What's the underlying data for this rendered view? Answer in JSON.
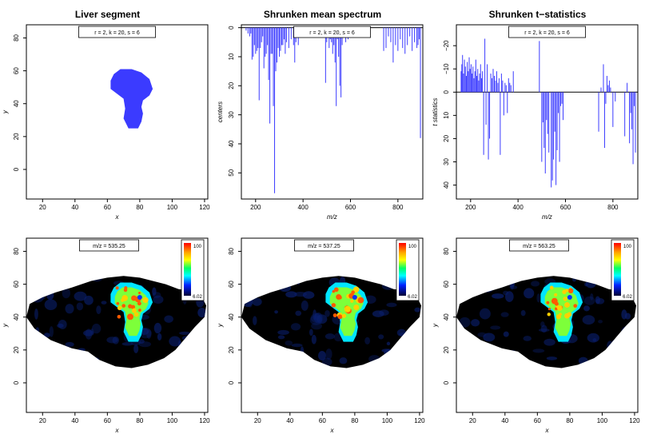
{
  "chart_data": [
    {
      "type": "heatmap",
      "title": "Liver segment",
      "xlabel": "x",
      "ylabel": "y",
      "legend_text": "r = 2, k = 20, s = 6",
      "xticks": [
        20,
        40,
        60,
        80,
        100,
        120
      ],
      "yticks": [
        0,
        20,
        40,
        60,
        80
      ],
      "xlim": [
        10,
        122
      ],
      "ylim": [
        88,
        -18
      ],
      "segment_color": "#3b3bff",
      "segment_outline": [
        [
          73,
          25
        ],
        [
          79,
          25
        ],
        [
          81,
          29
        ],
        [
          82,
          34
        ],
        [
          81,
          38
        ],
        [
          82,
          42
        ],
        [
          86,
          45
        ],
        [
          88,
          49
        ],
        [
          86,
          55
        ],
        [
          81,
          59
        ],
        [
          75,
          61
        ],
        [
          68,
          61
        ],
        [
          64,
          58
        ],
        [
          62,
          54
        ],
        [
          62,
          49
        ],
        [
          66,
          46
        ],
        [
          70,
          43
        ],
        [
          71,
          37
        ],
        [
          70,
          31
        ],
        [
          72,
          27
        ]
      ]
    },
    {
      "type": "bar",
      "title": "Shrunken mean spectrum",
      "xlabel": "m/z",
      "ylabel": "centers",
      "legend_text": "r = 2, k = 20, s = 6",
      "xticks": [
        200,
        400,
        600,
        800
      ],
      "yticks": [
        0,
        10,
        20,
        30,
        40,
        50
      ],
      "xlim": [
        140,
        905
      ],
      "ylim": [
        -1,
        59
      ],
      "bar_color": "#3b3bff",
      "x": [
        160,
        168,
        175,
        180,
        185,
        190,
        195,
        200,
        205,
        210,
        215,
        220,
        225,
        230,
        235,
        240,
        245,
        250,
        255,
        260,
        265,
        270,
        275,
        280,
        285,
        290,
        295,
        300,
        305,
        310,
        315,
        320,
        325,
        330,
        340,
        350,
        360,
        365,
        370,
        380,
        490,
        495,
        500,
        505,
        510,
        515,
        520,
        525,
        530,
        535,
        540,
        545,
        550,
        555,
        560,
        565,
        570,
        580,
        590,
        740,
        750,
        760,
        770,
        780,
        790,
        800,
        810,
        820,
        830,
        840,
        850,
        860,
        870,
        880,
        885,
        890,
        895
      ],
      "values": [
        1,
        2,
        3,
        2,
        11,
        10,
        6,
        9,
        8,
        7,
        25,
        7,
        5,
        3,
        14,
        10,
        9,
        6,
        18,
        33,
        9,
        9,
        27,
        57,
        15,
        12,
        7,
        10,
        8,
        6,
        6,
        4,
        9,
        5,
        7,
        4,
        6,
        12,
        5,
        6,
        3,
        19,
        5,
        3,
        7,
        4,
        5,
        9,
        6,
        12,
        27,
        4,
        10,
        20,
        24,
        6,
        3,
        5,
        4,
        8,
        7,
        3,
        5,
        12,
        6,
        8,
        4,
        7,
        9,
        6,
        3,
        8,
        5,
        7,
        6,
        4,
        38
      ]
    },
    {
      "type": "bar",
      "title": "Shrunken t−statistics",
      "xlabel": "m/z",
      "ylabel": "t statistics",
      "legend_text": "r = 2, k = 20, s = 6",
      "xticks": [
        200,
        400,
        600,
        800
      ],
      "yticks": [
        -20,
        -10,
        0,
        10,
        20,
        30,
        40
      ],
      "xlim": [
        140,
        905
      ],
      "ylim": [
        -29,
        46
      ],
      "bar_color": "#3b3bff",
      "x": [
        160,
        163,
        166,
        170,
        174,
        178,
        182,
        186,
        190,
        194,
        198,
        202,
        206,
        210,
        214,
        218,
        222,
        226,
        230,
        234,
        238,
        242,
        246,
        250,
        255,
        260,
        265,
        270,
        275,
        280,
        285,
        290,
        295,
        300,
        305,
        310,
        315,
        320,
        325,
        330,
        335,
        340,
        345,
        350,
        355,
        360,
        365,
        370,
        380,
        490,
        500,
        505,
        510,
        515,
        520,
        525,
        530,
        540,
        545,
        550,
        555,
        560,
        565,
        570,
        575,
        580,
        585,
        590,
        740,
        750,
        760,
        765,
        770,
        775,
        780,
        785,
        790,
        800,
        810,
        850,
        860,
        870,
        875,
        880,
        885,
        890,
        895
      ],
      "values": [
        -9,
        -12,
        -16,
        -8,
        -14,
        -11,
        -7,
        -13,
        -9,
        -15,
        -10,
        -12,
        -8,
        -11,
        -6,
        -9,
        -14,
        -7,
        -10,
        -5,
        -8,
        -12,
        -6,
        -9,
        27,
        -23,
        14,
        -12,
        29,
        20,
        -8,
        -6,
        -10,
        -7,
        -5,
        -9,
        -4,
        -6,
        27,
        -8,
        -5,
        10,
        -4,
        -3,
        9,
        -6,
        -4,
        -3,
        -9,
        -22,
        30,
        13,
        24,
        35,
        12,
        18,
        26,
        41,
        38,
        29,
        17,
        40,
        25,
        9,
        30,
        6,
        5,
        12,
        17,
        -2,
        -12,
        24,
        5,
        -7,
        -3,
        -5,
        -2,
        15,
        4,
        19,
        -4,
        22,
        9,
        16,
        31,
        6,
        26
      ]
    },
    {
      "type": "heatmap",
      "title": "",
      "xlabel": "x",
      "ylabel": "y",
      "legend_text": "m/z = 535.25",
      "colorbar_max": "100",
      "colorbar_min": "6.02",
      "xticks": [
        20,
        40,
        60,
        80,
        100,
        120
      ],
      "yticks": [
        0,
        20,
        40,
        60,
        80
      ],
      "xlim": [
        10,
        122
      ],
      "ylim": [
        88,
        -18
      ]
    },
    {
      "type": "heatmap",
      "title": "",
      "xlabel": "x",
      "ylabel": "y",
      "legend_text": "m/z = 537.25",
      "colorbar_max": "100",
      "colorbar_min": "6.02",
      "xticks": [
        20,
        40,
        60,
        80,
        100,
        120
      ],
      "yticks": [
        0,
        20,
        40,
        60,
        80
      ],
      "xlim": [
        10,
        122
      ],
      "ylim": [
        88,
        -18
      ]
    },
    {
      "type": "heatmap",
      "title": "",
      "xlabel": "x",
      "ylabel": "y",
      "legend_text": "m/z = 563.25",
      "colorbar_max": "100",
      "colorbar_min": "6.02",
      "xticks": [
        20,
        40,
        60,
        80,
        100,
        120
      ],
      "yticks": [
        0,
        20,
        40,
        60,
        80
      ],
      "xlim": [
        10,
        122
      ],
      "ylim": [
        88,
        -18
      ]
    }
  ]
}
